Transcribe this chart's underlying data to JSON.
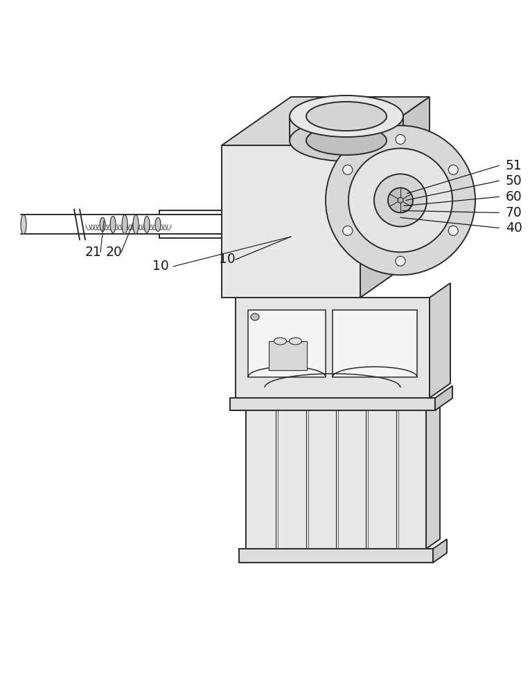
{
  "background_color": "#ffffff",
  "line_color": "#2a2a2a",
  "label_color": "#1a1a1a",
  "figsize": [
    7.65,
    10.0
  ],
  "dpi": 100,
  "lw_main": 1.4,
  "lw_thin": 0.8,
  "lw_med": 1.1,
  "face_front": "#e8e8e8",
  "face_top": "#d8d8d8",
  "face_side": "#c8c8c8",
  "face_flange": "#e0e0e0",
  "face_light": "#f0f0f0"
}
